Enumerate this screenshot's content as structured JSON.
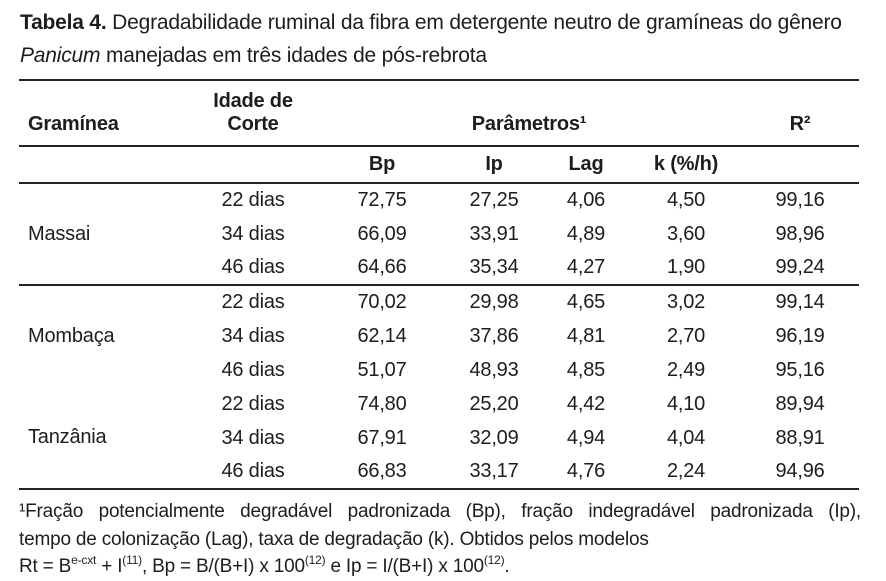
{
  "title": {
    "label": "Tabela 4.",
    "before_italic": " Degradabilidade ruminal da fibra em detergente neutro de gramíneas do gênero ",
    "italic": "Panicum",
    "after_italic": " manejadas em três idades de pós-rebrota"
  },
  "table": {
    "headers": {
      "graminea": "Gramínea",
      "idade_line1": "Idade de",
      "idade_line2": "Corte",
      "parametros": "Parâmetros¹",
      "r2": "R²"
    },
    "subheaders": {
      "bp": "Bp",
      "ip": "Ip",
      "lag": "Lag",
      "k": "k (%/h)"
    },
    "groups": [
      {
        "name": "Massai",
        "rows": [
          {
            "idade": "22 dias",
            "bp": "72,75",
            "ip": "27,25",
            "lag": "4,06",
            "k": "4,50",
            "r2": "99,16"
          },
          {
            "idade": "34 dias",
            "bp": "66,09",
            "ip": "33,91",
            "lag": "4,89",
            "k": "3,60",
            "r2": "98,96"
          },
          {
            "idade": "46 dias",
            "bp": "64,66",
            "ip": "35,34",
            "lag": "4,27",
            "k": "1,90",
            "r2": "99,24"
          }
        ]
      },
      {
        "name": "Mombaça",
        "rows": [
          {
            "idade": "22 dias",
            "bp": "70,02",
            "ip": "29,98",
            "lag": "4,65",
            "k": "3,02",
            "r2": "99,14"
          },
          {
            "idade": "34 dias",
            "bp": "62,14",
            "ip": "37,86",
            "lag": "4,81",
            "k": "2,70",
            "r2": "96,19"
          },
          {
            "idade": "46 dias",
            "bp": "51,07",
            "ip": "48,93",
            "lag": "4,85",
            "k": "2,49",
            "r2": "95,16"
          }
        ]
      },
      {
        "name": "Tanzânia",
        "rows": [
          {
            "idade": "22 dias",
            "bp": "74,80",
            "ip": "25,20",
            "lag": "4,42",
            "k": "4,10",
            "r2": "89,94"
          },
          {
            "idade": "34 dias",
            "bp": "67,91",
            "ip": "32,09",
            "lag": "4,94",
            "k": "4,04",
            "r2": "88,91"
          },
          {
            "idade": "46 dias",
            "bp": "66,83",
            "ip": "33,17",
            "lag": "4,76",
            "k": "2,24",
            "r2": "94,96"
          }
        ]
      }
    ]
  },
  "footnote": {
    "line1": "¹Fração potencialmente degradável padronizada (Bp), fração indegradável padronizada (Ip),",
    "line2": "tempo de colonização (Lag), taxa de degradação (k). Obtidos pelos modelos",
    "formula": [
      {
        "t": "Rt = B"
      },
      {
        "s": "e-cxt"
      },
      {
        "t": " + I"
      },
      {
        "s": "(11)"
      },
      {
        "t": ", Bp = B/(B+I) x 100"
      },
      {
        "s": "(12)"
      },
      {
        "t": " e Ip = I/(B+I) x 100"
      },
      {
        "s": "(12)"
      },
      {
        "t": "."
      }
    ]
  },
  "colors": {
    "text": "#1d1d1d",
    "rule": "#232323",
    "background": "#ffffff"
  }
}
